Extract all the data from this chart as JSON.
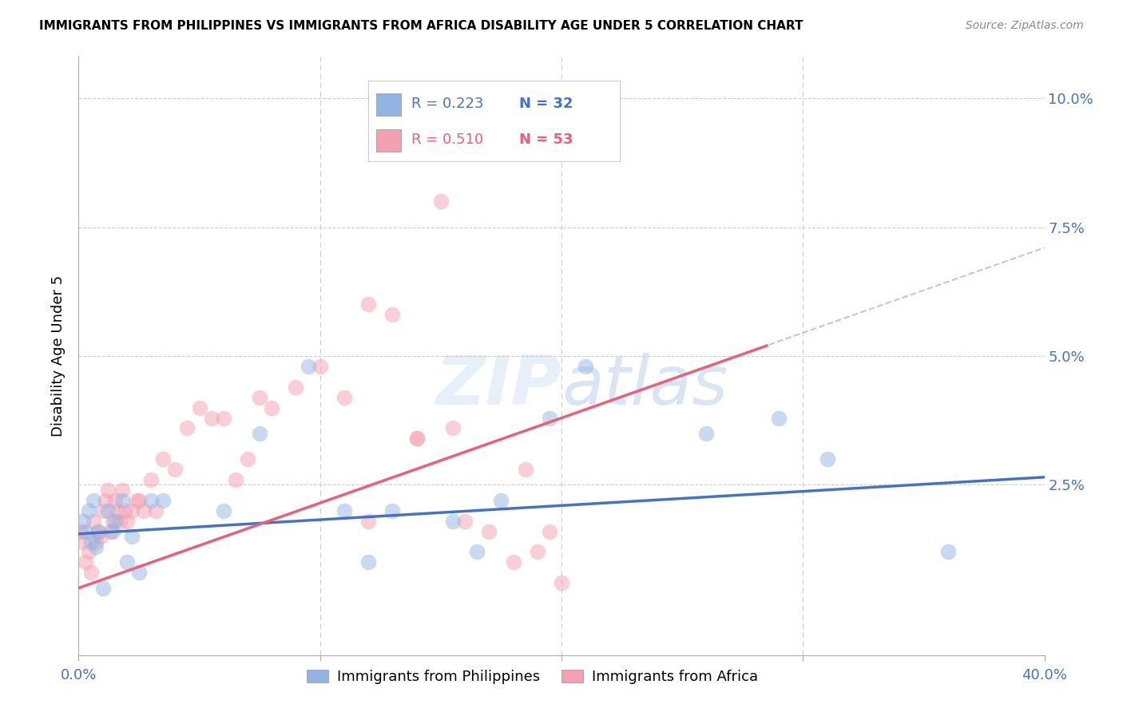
{
  "title": "IMMIGRANTS FROM PHILIPPINES VS IMMIGRANTS FROM AFRICA DISABILITY AGE UNDER 5 CORRELATION CHART",
  "source": "Source: ZipAtlas.com",
  "ylabel": "Disability Age Under 5",
  "ytick_labels": [
    "",
    "2.5%",
    "5.0%",
    "7.5%",
    "10.0%"
  ],
  "ytick_values": [
    0.0,
    0.025,
    0.05,
    0.075,
    0.1
  ],
  "xlim": [
    0.0,
    0.4
  ],
  "ylim": [
    -0.008,
    0.108
  ],
  "color_philippines": "#92B4E3",
  "color_africa": "#F4A0B0",
  "color_philippines_line": "#4472C4",
  "color_africa_line": "#E8607A",
  "color_axis_labels": "#4472C4",
  "philippines_scatter_x": [
    0.002,
    0.003,
    0.004,
    0.005,
    0.006,
    0.007,
    0.008,
    0.01,
    0.012,
    0.014,
    0.015,
    0.018,
    0.02,
    0.022,
    0.025,
    0.03,
    0.035,
    0.06,
    0.075,
    0.095,
    0.11,
    0.12,
    0.13,
    0.155,
    0.165,
    0.175,
    0.195,
    0.21,
    0.26,
    0.29,
    0.31,
    0.36
  ],
  "philippines_scatter_y": [
    0.018,
    0.016,
    0.02,
    0.014,
    0.022,
    0.013,
    0.016,
    0.005,
    0.02,
    0.016,
    0.018,
    0.022,
    0.01,
    0.015,
    0.008,
    0.022,
    0.022,
    0.02,
    0.035,
    0.048,
    0.02,
    0.01,
    0.02,
    0.018,
    0.012,
    0.022,
    0.038,
    0.048,
    0.035,
    0.038,
    0.03,
    0.012
  ],
  "africa_scatter_x": [
    0.001,
    0.002,
    0.003,
    0.004,
    0.005,
    0.006,
    0.007,
    0.008,
    0.009,
    0.01,
    0.011,
    0.012,
    0.013,
    0.014,
    0.015,
    0.016,
    0.017,
    0.018,
    0.019,
    0.02,
    0.022,
    0.024,
    0.025,
    0.027,
    0.03,
    0.032,
    0.035,
    0.04,
    0.045,
    0.05,
    0.055,
    0.06,
    0.065,
    0.07,
    0.075,
    0.08,
    0.09,
    0.1,
    0.11,
    0.12,
    0.13,
    0.14,
    0.16,
    0.17,
    0.18,
    0.19,
    0.2,
    0.15,
    0.185,
    0.155,
    0.14,
    0.195,
    0.12
  ],
  "africa_scatter_y": [
    0.016,
    0.014,
    0.01,
    0.012,
    0.008,
    0.018,
    0.014,
    0.016,
    0.015,
    0.02,
    0.022,
    0.024,
    0.016,
    0.018,
    0.022,
    0.02,
    0.018,
    0.024,
    0.02,
    0.018,
    0.02,
    0.022,
    0.022,
    0.02,
    0.026,
    0.02,
    0.03,
    0.028,
    0.036,
    0.04,
    0.038,
    0.038,
    0.026,
    0.03,
    0.042,
    0.04,
    0.044,
    0.048,
    0.042,
    0.06,
    0.058,
    0.034,
    0.018,
    0.016,
    0.01,
    0.012,
    0.006,
    0.08,
    0.028,
    0.036,
    0.034,
    0.016,
    0.018
  ],
  "philippines_line_x": [
    0.0,
    0.4
  ],
  "philippines_line_y": [
    0.0155,
    0.0265
  ],
  "africa_line_x": [
    0.0,
    0.285
  ],
  "africa_line_y": [
    0.005,
    0.052
  ],
  "africa_dashed_line_x": [
    0.0,
    0.4
  ],
  "africa_dashed_line_y": [
    0.005,
    0.071
  ],
  "legend_r1": "R = 0.223",
  "legend_n1": "N = 32",
  "legend_r2": "R = 0.510",
  "legend_n2": "N = 53"
}
